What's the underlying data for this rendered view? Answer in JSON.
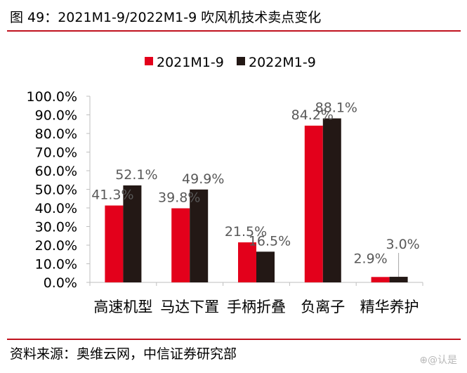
{
  "header": {
    "figure_title": "图 49：2021M1-9/2022M1-9 吹风机技术卖点变化"
  },
  "footer": {
    "source": "资料来源：奥维云网，中信证券研究部",
    "watermark": "⊕@认是"
  },
  "colors": {
    "series_2021": "#e3001b",
    "series_2022": "#231815",
    "axis": "#bfbfbf",
    "rule": "#c0121e"
  },
  "chart_data": {
    "type": "bar",
    "title": "2021M1-9/2022M1-9 吹风机技术卖点变化",
    "xlabel": "",
    "ylabel": "",
    "ylim": [
      0,
      100
    ],
    "y_tick_step": 10,
    "y_tick_format": "percent_1dp",
    "legend_position": "top-center",
    "categories": [
      "高速机型",
      "马达下置",
      "手柄折叠",
      "负离子",
      "精华养护"
    ],
    "series": [
      {
        "name": "2021M1-9",
        "color": "#e3001b",
        "values": [
          41.3,
          39.8,
          21.5,
          84.2,
          2.9
        ]
      },
      {
        "name": "2022M1-9",
        "color": "#231815",
        "values": [
          52.1,
          49.9,
          16.5,
          88.1,
          3.0
        ]
      }
    ],
    "y_tick_labels": [
      "0.0%",
      "10.0%",
      "20.0%",
      "30.0%",
      "40.0%",
      "50.0%",
      "60.0%",
      "70.0%",
      "80.0%",
      "90.0%",
      "100.0%"
    ],
    "data_labels": [
      [
        "41.3%",
        "39.8%",
        "21.5%",
        "84.2%",
        "2.9%"
      ],
      [
        "52.1%",
        "49.9%",
        "16.5%",
        "88.1%",
        "3.0%"
      ]
    ]
  }
}
